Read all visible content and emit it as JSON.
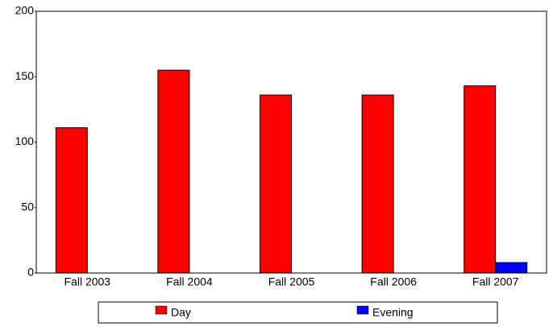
{
  "chart_data": {
    "type": "bar",
    "categories": [
      "Fall 2003",
      "Fall 2004",
      "Fall 2005",
      "Fall 2006",
      "Fall 2007"
    ],
    "series": [
      {
        "name": "Day",
        "color": "#ff0000",
        "values": [
          111,
          155,
          136,
          136,
          143
        ]
      },
      {
        "name": "Evening",
        "color": "#0000ff",
        "values": [
          0,
          0,
          0,
          0,
          8
        ]
      }
    ],
    "ylim": [
      0,
      200
    ],
    "yticks": [
      0,
      50,
      100,
      150,
      200
    ],
    "grid": false,
    "legend": "bottom"
  }
}
